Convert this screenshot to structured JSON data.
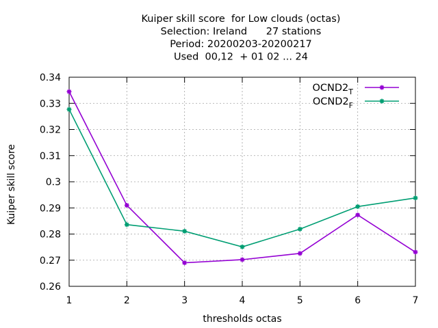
{
  "chart_data": {
    "type": "line",
    "title_lines": [
      "Kuiper skill score  for Low clouds (octas)",
      "Selection: Ireland      27 stations",
      "Period: 20200203-20200217",
      "Used  00,12  + 01 02 ... 24"
    ],
    "xlabel": "thresholds octas",
    "ylabel": "Kuiper skill score",
    "x": [
      1,
      2,
      3,
      4,
      5,
      6,
      7
    ],
    "xlim": [
      1,
      7
    ],
    "ylim": [
      0.26,
      0.34
    ],
    "xticks": [
      "1",
      "2",
      "3",
      "4",
      "5",
      "6",
      "7"
    ],
    "yticks": [
      "0.26",
      "0.27",
      "0.28",
      "0.29",
      "0.3",
      "0.31",
      "0.32",
      "0.33",
      "0.34"
    ],
    "ytick_values": [
      0.26,
      0.27,
      0.28,
      0.29,
      0.3,
      0.31,
      0.32,
      0.33,
      0.34
    ],
    "grid": true,
    "legend_position": "top-right",
    "series": [
      {
        "name": "OCND2",
        "subscript": "T",
        "color": "#9400d3",
        "values": [
          0.3345,
          0.291,
          0.269,
          0.2702,
          0.2726,
          0.2873,
          0.2731
        ]
      },
      {
        "name": "OCND2",
        "subscript": "F",
        "color": "#009e73",
        "values": [
          0.3277,
          0.2836,
          0.2811,
          0.2751,
          0.2819,
          0.2905,
          0.2938
        ]
      }
    ]
  }
}
